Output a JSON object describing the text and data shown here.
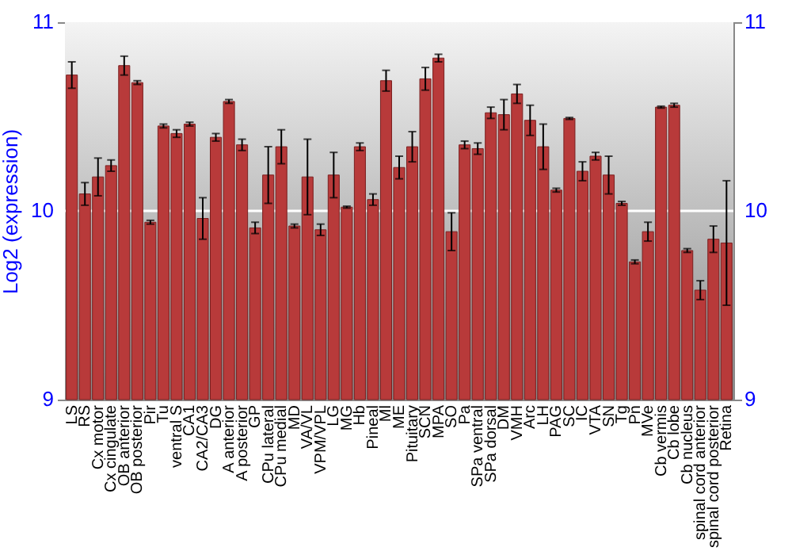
{
  "chart_data": {
    "type": "bar",
    "ylabel": "Log2 (expression)",
    "categories": [
      "LS",
      "RS",
      "Cx motor",
      "Cx cingulate",
      "OB anterior",
      "OB posterior",
      "Pir",
      "Tu",
      "ventral S",
      "CA1",
      "CA2/CA3",
      "DG",
      "A anterior",
      "A posterior",
      "GP",
      "CPu lateral",
      "CPu medial",
      "MD",
      "VA/VL",
      "VPM/VPL",
      "LG",
      "MG",
      "Hb",
      "Pineal",
      "Ml",
      "ME",
      "Pituitary",
      "SCN",
      "MPA",
      "SO",
      "Pa",
      "SPa ventral",
      "SPa dorsal",
      "DM",
      "VMH",
      "Arc",
      "LH",
      "PAG",
      "SC",
      "IC",
      "VTA",
      "SN",
      "Tg",
      "Pn",
      "MVe",
      "Cb vermis",
      "Cb lobe",
      "Cb nucleus",
      "spinal cord anterior",
      "spinal cord posterior",
      "Retina"
    ],
    "values": [
      10.72,
      10.09,
      10.18,
      10.24,
      10.77,
      10.68,
      9.94,
      10.45,
      10.41,
      10.46,
      9.96,
      10.39,
      10.58,
      10.35,
      9.91,
      10.19,
      10.34,
      9.92,
      10.18,
      9.9,
      10.19,
      10.02,
      10.34,
      10.06,
      10.69,
      10.23,
      10.34,
      10.7,
      10.81,
      9.89,
      10.35,
      10.33,
      10.52,
      10.51,
      10.62,
      10.48,
      10.34,
      10.11,
      10.49,
      10.21,
      10.29,
      10.19,
      10.04,
      9.73,
      9.89,
      10.55,
      10.56,
      9.79,
      9.58,
      9.85,
      9.83
    ],
    "errors": [
      0.07,
      0.06,
      0.1,
      0.03,
      0.05,
      0.01,
      0.01,
      0.01,
      0.02,
      0.01,
      0.11,
      0.02,
      0.01,
      0.03,
      0.03,
      0.15,
      0.09,
      0.01,
      0.2,
      0.03,
      0.12,
      0.005,
      0.02,
      0.03,
      0.055,
      0.06,
      0.08,
      0.06,
      0.02,
      0.1,
      0.02,
      0.03,
      0.03,
      0.08,
      0.05,
      0.08,
      0.12,
      0.01,
      0.005,
      0.05,
      0.02,
      0.1,
      0.01,
      0.01,
      0.05,
      0.005,
      0.01,
      0.01,
      0.05,
      0.07,
      0.33
    ],
    "color": "#b83a3a",
    "ylim": [
      9,
      11
    ],
    "yticks": [
      9,
      10,
      11
    ],
    "y2lim": [
      9,
      11
    ],
    "y2ticks": [
      9,
      10,
      11
    ],
    "ref_lines": [
      {
        "axis": "y",
        "value": 10,
        "color": "#ffffff"
      }
    ],
    "grid": false
  }
}
